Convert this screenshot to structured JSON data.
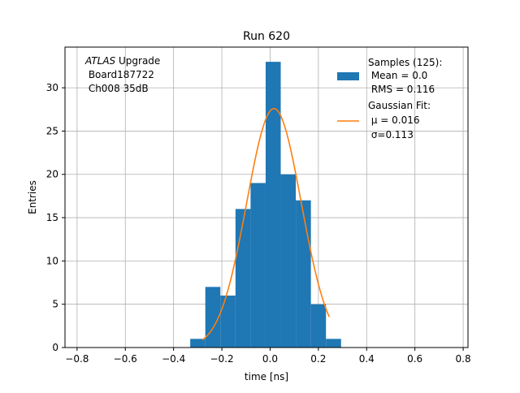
{
  "chart_data": {
    "type": "bar",
    "title": "Run 620",
    "xlabel": "time [ns]",
    "ylabel": "Entries",
    "xlim": [
      -0.85,
      0.82
    ],
    "ylim": [
      0,
      34.7
    ],
    "grid": true,
    "x_ticks": [
      -0.8,
      -0.6,
      -0.4,
      -0.2,
      0.0,
      0.2,
      0.4,
      0.6,
      0.8
    ],
    "x_tick_labels": [
      "−0.8",
      "−0.6",
      "−0.4",
      "−0.2",
      "0.0",
      "0.2",
      "0.4",
      "0.6",
      "0.8"
    ],
    "y_ticks": [
      0,
      5,
      10,
      15,
      20,
      25,
      30
    ],
    "y_tick_labels": [
      "0",
      "5",
      "10",
      "15",
      "20",
      "25",
      "30"
    ],
    "histogram": {
      "name": "Samples (125):",
      "color": "#1f77b4",
      "bin_edges": [
        -0.331,
        -0.2685,
        -0.206,
        -0.1435,
        -0.081,
        -0.0185,
        0.044,
        0.1065,
        0.169,
        0.2315,
        0.294
      ],
      "edge_labels": [
        "-0.331",
        "-0.2685",
        "-0.206",
        "-0.1435",
        "-0.081",
        "-0.0185",
        "0.044",
        "0.1065",
        "0.169",
        "0.2315",
        "0.294"
      ],
      "counts": [
        1,
        7,
        6,
        16,
        19,
        33,
        20,
        17,
        5,
        1
      ]
    },
    "fit": {
      "name": "Gaussian Fit:",
      "color": "#ff7f0e",
      "x_range": [
        -0.28,
        0.245
      ],
      "mu": 0.016,
      "sigma": 0.113,
      "amplitude": 27.6,
      "mu_label": " μ = 0.016",
      "sigma_label": " σ=0.113"
    },
    "annotation": {
      "atlas": "ATLAS",
      "upgrade": " Upgrade",
      "line2": " Board187722",
      "line3": " Ch008 35dB"
    },
    "legend": {
      "position": "top-right",
      "hist_lines": [
        "Samples (125):",
        " Mean = 0.0",
        " RMS = 0.116"
      ],
      "fit_lines": [
        "Gaussian Fit:",
        " μ = 0.016",
        " σ=0.113"
      ]
    }
  }
}
